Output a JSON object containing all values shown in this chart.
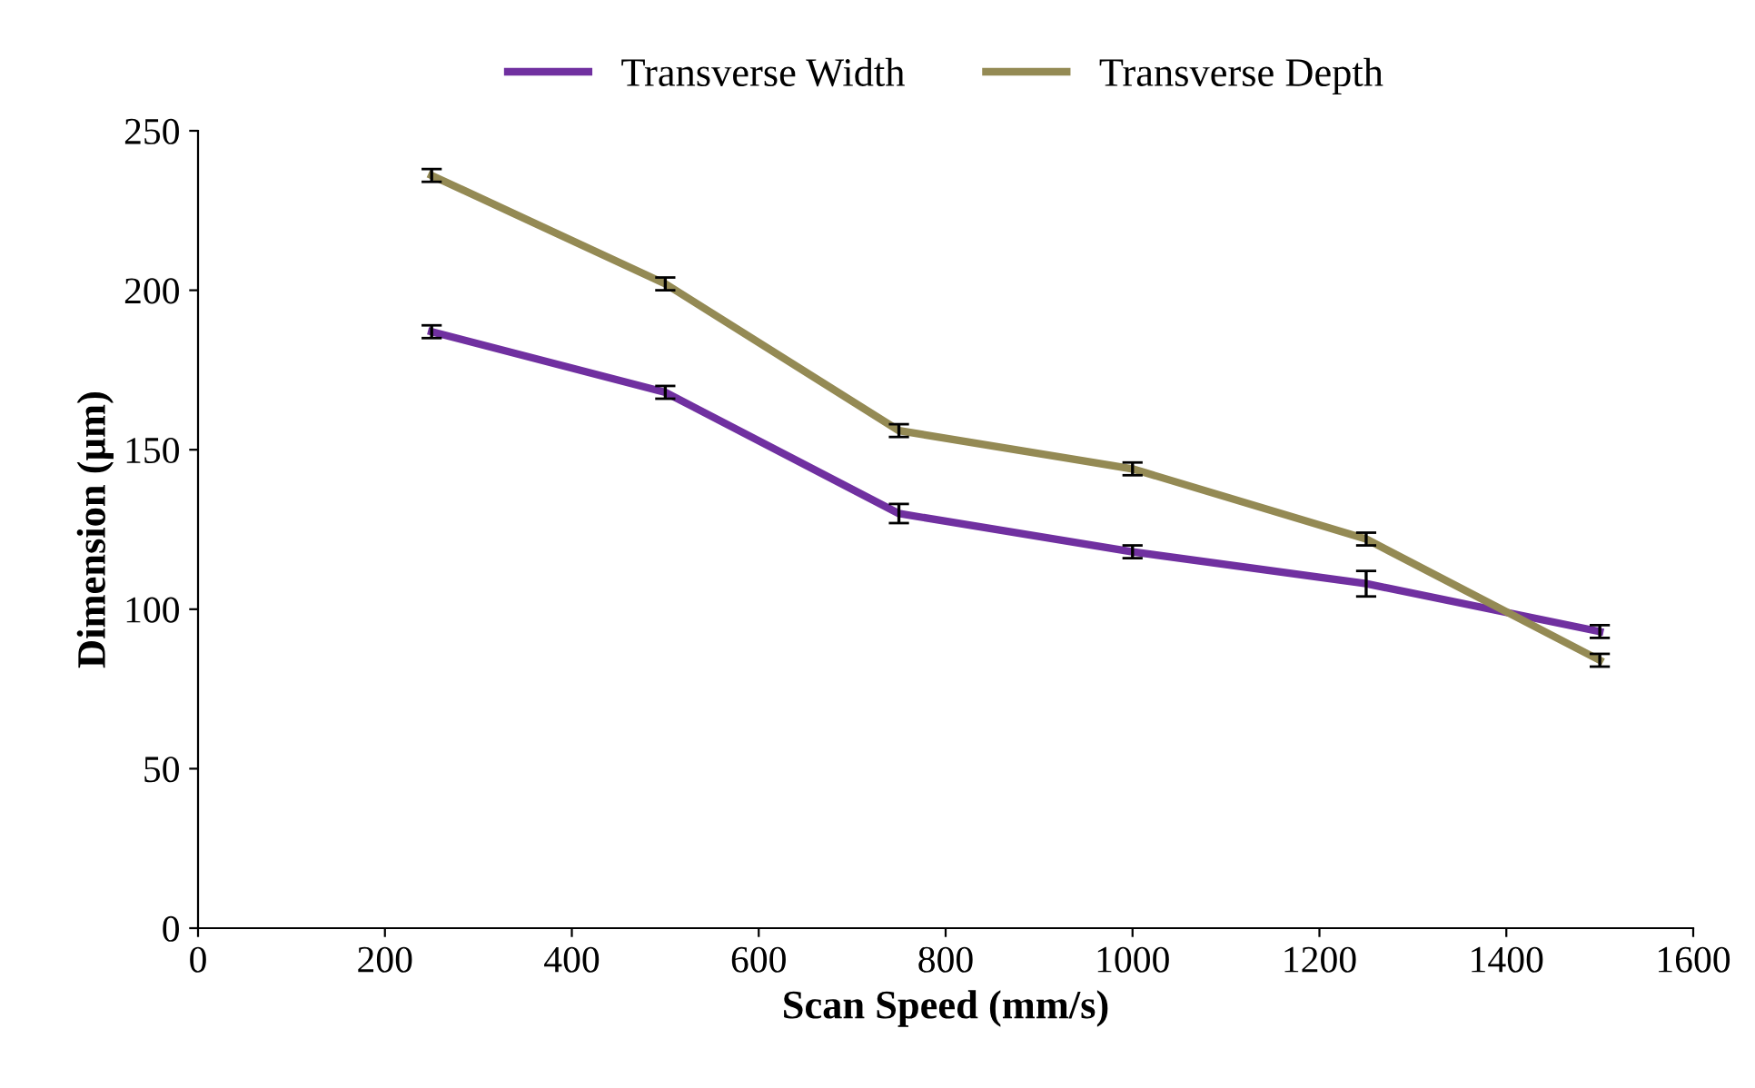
{
  "chart_data": {
    "type": "line",
    "xlabel": "Scan Speed (mm/s)",
    "ylabel": "Dimension (µm)",
    "x": [
      250,
      500,
      750,
      1000,
      1250,
      1500
    ],
    "series": [
      {
        "name": "Transverse Width",
        "color": "#7030a0",
        "values": [
          187,
          168,
          130,
          118,
          108,
          93
        ],
        "errors": [
          2,
          2,
          3,
          2,
          4,
          2
        ]
      },
      {
        "name": "Transverse Depth",
        "color": "#948a54",
        "values": [
          236,
          202,
          156,
          144,
          122,
          84
        ],
        "errors": [
          2,
          2,
          2,
          2,
          2,
          2
        ]
      }
    ],
    "xlim": [
      0,
      1600
    ],
    "xticks": [
      0,
      200,
      400,
      600,
      800,
      1000,
      1200,
      1400,
      1600
    ],
    "ylim": [
      0,
      250
    ],
    "yticks": [
      0,
      50,
      100,
      150,
      200,
      250
    ],
    "grid": false,
    "legend": "top",
    "marker": "none",
    "line_style": "solid"
  }
}
